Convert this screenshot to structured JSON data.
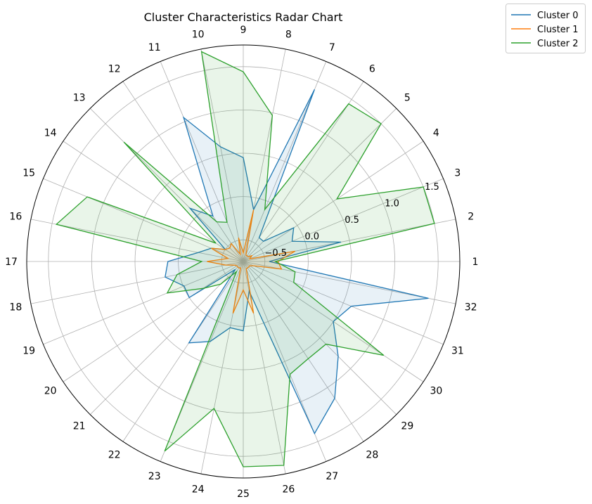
{
  "chart_data": {
    "type": "radar",
    "title": "Cluster Characteristics Radar Chart",
    "categories": [
      "1",
      "2",
      "3",
      "4",
      "5",
      "6",
      "7",
      "8",
      "9",
      "10",
      "11",
      "12",
      "13",
      "14",
      "15",
      "16",
      "17",
      "18",
      "19",
      "20",
      "21",
      "22",
      "23",
      "24",
      "25",
      "26",
      "27",
      "28",
      "29",
      "30",
      "31",
      "32"
    ],
    "radial_ticks": [
      "-0.5",
      "0.0",
      "0.5",
      "1.0",
      "1.5"
    ],
    "rlim": [
      -0.75,
      1.75
    ],
    "grid": true,
    "legend_position": "upper-right, outside",
    "series": [
      {
        "name": "Cluster 0",
        "color": "#1f77b4",
        "values": [
          -0.45,
          0.4,
          -0.14,
          -0.05,
          -0.42,
          -0.42,
          1.4,
          -0.14,
          0.45,
          0.6,
          1.05,
          -0.12,
          0.12,
          -0.5,
          -0.35,
          -0.22,
          0.12,
          0.17,
          -0.01,
          0.0,
          -0.62,
          0.38,
          0.25,
          0.03,
          0.05,
          -0.4,
          1.4,
          1.15,
          0.8,
          0.5,
          0.6,
          1.43
        ]
      },
      {
        "name": "Cluster 1",
        "color": "#ff7f0e",
        "values": [
          -0.35,
          -0.14,
          -0.67,
          -0.63,
          -0.67,
          -0.67,
          -0.67,
          -0.14,
          -0.65,
          -0.47,
          -0.66,
          -0.5,
          -0.53,
          -0.5,
          -0.35,
          -0.57,
          -0.33,
          -0.54,
          -0.64,
          -0.66,
          -0.66,
          -0.66,
          -0.67,
          -0.14,
          -0.42,
          -0.14,
          -0.66,
          -0.66,
          -0.66,
          -0.66,
          -0.62,
          -0.3
        ]
      },
      {
        "name": "Cluster 2",
        "color": "#2ca02c",
        "values": [
          -0.38,
          1.5,
          1.5,
          0.55,
          1.5,
          1.44,
          -0.1,
          0.97,
          1.44,
          1.72,
          -0.26,
          -0.2,
          1.2,
          -0.37,
          1.2,
          1.45,
          -0.27,
          0.03,
          0.2,
          -0.19,
          -0.38,
          -0.61,
          1.62,
          0.98,
          1.62,
          1.65,
          0.66,
          0.6,
          0.6,
          1.2,
          -0.12,
          -0.14
        ]
      }
    ]
  }
}
